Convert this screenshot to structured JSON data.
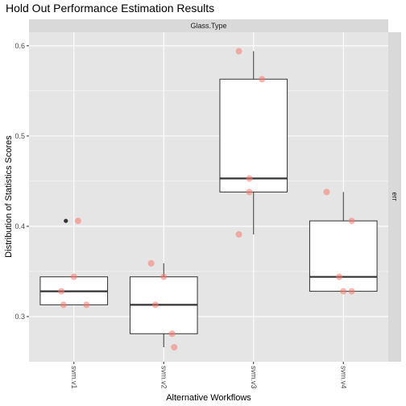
{
  "chart_data": {
    "type": "boxplot",
    "title": "Hold Out Performance Estimation Results",
    "xlabel": "Alternative Workflows",
    "ylabel": "Distribution of Statistics Scores",
    "facet_top": "Glass.Type",
    "facet_right": "err",
    "categories": [
      "svm.v1",
      "svm.v2",
      "svm.v3",
      "svm.v4"
    ],
    "ylim": [
      0.25,
      0.615
    ],
    "yticks": [
      0.3,
      0.4,
      0.5,
      0.6
    ],
    "ytick_labels": [
      "0.3",
      "0.4",
      "0.5",
      "0.6"
    ],
    "grid": true,
    "boxes": [
      {
        "category": "svm.v1",
        "q1": 0.313,
        "median": 0.328,
        "q3": 0.344,
        "whisker_low": 0.313,
        "whisker_high": 0.344,
        "outliers": [
          0.406
        ]
      },
      {
        "category": "svm.v2",
        "q1": 0.281,
        "median": 0.313,
        "q3": 0.344,
        "whisker_low": 0.266,
        "whisker_high": 0.359,
        "outliers": []
      },
      {
        "category": "svm.v3",
        "q1": 0.438,
        "median": 0.453,
        "q3": 0.563,
        "whisker_low": 0.391,
        "whisker_high": 0.594,
        "outliers": []
      },
      {
        "category": "svm.v4",
        "q1": 0.328,
        "median": 0.344,
        "q3": 0.406,
        "whisker_low": 0.328,
        "whisker_high": 0.438,
        "outliers": []
      }
    ],
    "points": [
      {
        "category": "svm.v1",
        "values": [
          0.406,
          0.344,
          0.328,
          0.313,
          0.313
        ]
      },
      {
        "category": "svm.v2",
        "values": [
          0.359,
          0.344,
          0.313,
          0.281,
          0.266
        ]
      },
      {
        "category": "svm.v3",
        "values": [
          0.594,
          0.563,
          0.453,
          0.438,
          0.391
        ]
      },
      {
        "category": "svm.v4",
        "values": [
          0.438,
          0.406,
          0.344,
          0.328,
          0.328
        ]
      }
    ],
    "colors": {
      "panel_background": "#e5e5e5",
      "gridline": "#ffffff",
      "strip_background": "#d9d9d9",
      "box_fill": "#ffffff",
      "box_line": "#333333",
      "point": "#f8766d",
      "outlier": "#333333"
    }
  }
}
